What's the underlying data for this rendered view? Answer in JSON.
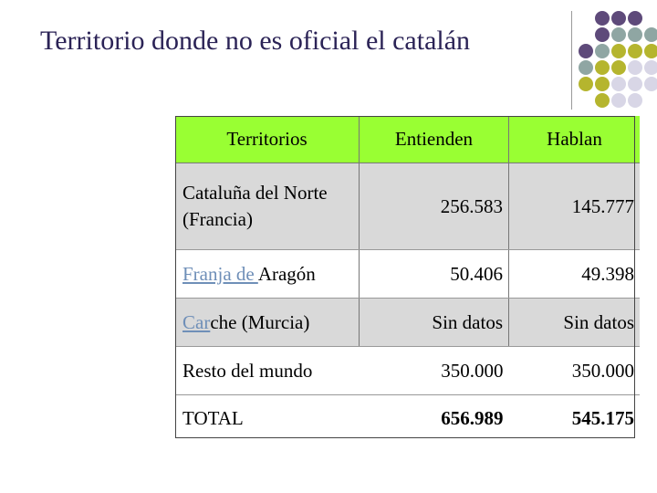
{
  "slide": {
    "title": "Territorio donde no es oficial el catalán"
  },
  "decoration": {
    "dot_colors": {
      "purple": "#5e4a7a",
      "teal": "#8fa6a3",
      "olive": "#b5b52e",
      "lavender": "#d8d6e6"
    }
  },
  "table": {
    "headers": [
      "Territorios",
      "Entienden",
      "Hablan"
    ],
    "rows": [
      {
        "territory": "Cataluña del Norte (Francia)",
        "entienden": "256.583",
        "hablan": "145.777"
      },
      {
        "territory_link": "Franja de ",
        "territory_rest": "Aragón",
        "entienden": "50.406",
        "hablan": "49.398"
      },
      {
        "territory_link": "Car",
        "territory_rest": "che (Murcia)",
        "entienden": "Sin datos",
        "hablan": "Sin datos"
      },
      {
        "territory": "Resto del mundo",
        "entienden": "350.000",
        "hablan": "350.000"
      },
      {
        "territory": "TOTAL",
        "entienden": "656.989",
        "hablan": "545.175"
      }
    ],
    "colors": {
      "header_bg": "#99ff33",
      "stripe_bg": "#d9d9d9",
      "link_text": "#6f8fb8"
    }
  }
}
